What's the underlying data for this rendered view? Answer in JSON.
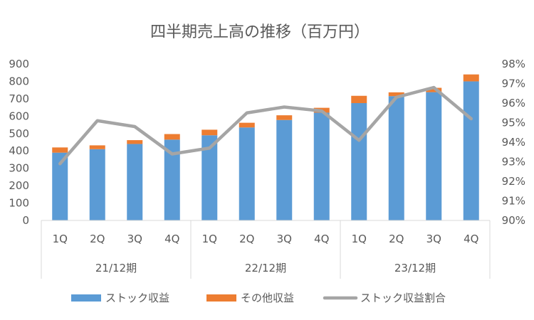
{
  "chart_data": {
    "type": "bar",
    "title": "四半期売上高の推移（百万円）",
    "categories": [
      "1Q",
      "2Q",
      "3Q",
      "4Q",
      "1Q",
      "2Q",
      "3Q",
      "4Q",
      "1Q",
      "2Q",
      "3Q",
      "4Q"
    ],
    "groups": [
      {
        "label": "21/12期",
        "count": 4
      },
      {
        "label": "22/12期",
        "count": 4
      },
      {
        "label": "23/12期",
        "count": 4
      }
    ],
    "stacked": true,
    "series": [
      {
        "name": "ストック収益",
        "type": "bar",
        "axis": "left",
        "color": "#5B9BD5",
        "values": [
          390,
          410,
          440,
          465,
          490,
          535,
          578,
          620,
          675,
          715,
          738,
          800
        ]
      },
      {
        "name": "その他収益",
        "type": "bar",
        "axis": "left",
        "color": "#ED7D31",
        "values": [
          30,
          22,
          22,
          32,
          32,
          27,
          27,
          28,
          42,
          22,
          25,
          40
        ]
      },
      {
        "name": "ストック収益割合",
        "type": "line",
        "axis": "right",
        "color": "#A5A5A5",
        "values": [
          92.9,
          95.1,
          94.8,
          93.4,
          93.7,
          95.5,
          95.8,
          95.6,
          94.1,
          96.3,
          96.8,
          95.2
        ]
      }
    ],
    "y_left": {
      "min": 0,
      "max": 900,
      "step": 100,
      "ticks": [
        "0",
        "100",
        "200",
        "300",
        "400",
        "500",
        "600",
        "700",
        "800",
        "900"
      ]
    },
    "y_right": {
      "min": 90,
      "max": 98,
      "step": 1,
      "ticks": [
        "90%",
        "91%",
        "92%",
        "93%",
        "94%",
        "95%",
        "96%",
        "97%",
        "98%"
      ]
    },
    "grid": false,
    "legend_position": "bottom"
  }
}
